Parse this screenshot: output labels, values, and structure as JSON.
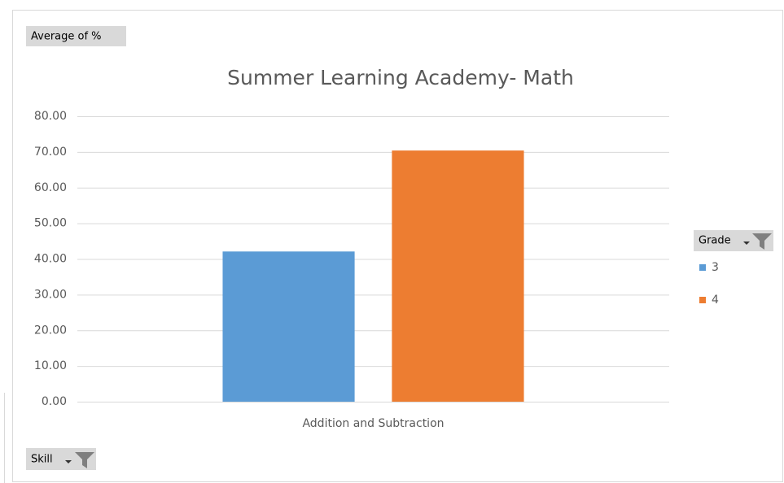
{
  "chart_data": {
    "type": "bar",
    "title": "Summer Learning Academy- Math",
    "value_field": "Average of %",
    "axis_field": "Skill",
    "legend_title": "Grade",
    "categories": [
      "Addition and Subtraction"
    ],
    "series": [
      {
        "name": "3",
        "color": "#5b9bd5",
        "values": [
          42.1
        ]
      },
      {
        "name": "4",
        "color": "#ed7d31",
        "values": [
          70.4
        ]
      }
    ],
    "ylim": [
      0,
      80
    ],
    "yticks": [
      {
        "value": 0,
        "label": "0.00"
      },
      {
        "value": 10,
        "label": "10.00"
      },
      {
        "value": 20,
        "label": "20.00"
      },
      {
        "value": 30,
        "label": "30.00"
      },
      {
        "value": 40,
        "label": "40.00"
      },
      {
        "value": 50,
        "label": "50.00"
      },
      {
        "value": 60,
        "label": "60.00"
      },
      {
        "value": 70,
        "label": "70.00"
      },
      {
        "value": 80,
        "label": "80.00"
      }
    ],
    "grid": true,
    "legend": "right"
  }
}
